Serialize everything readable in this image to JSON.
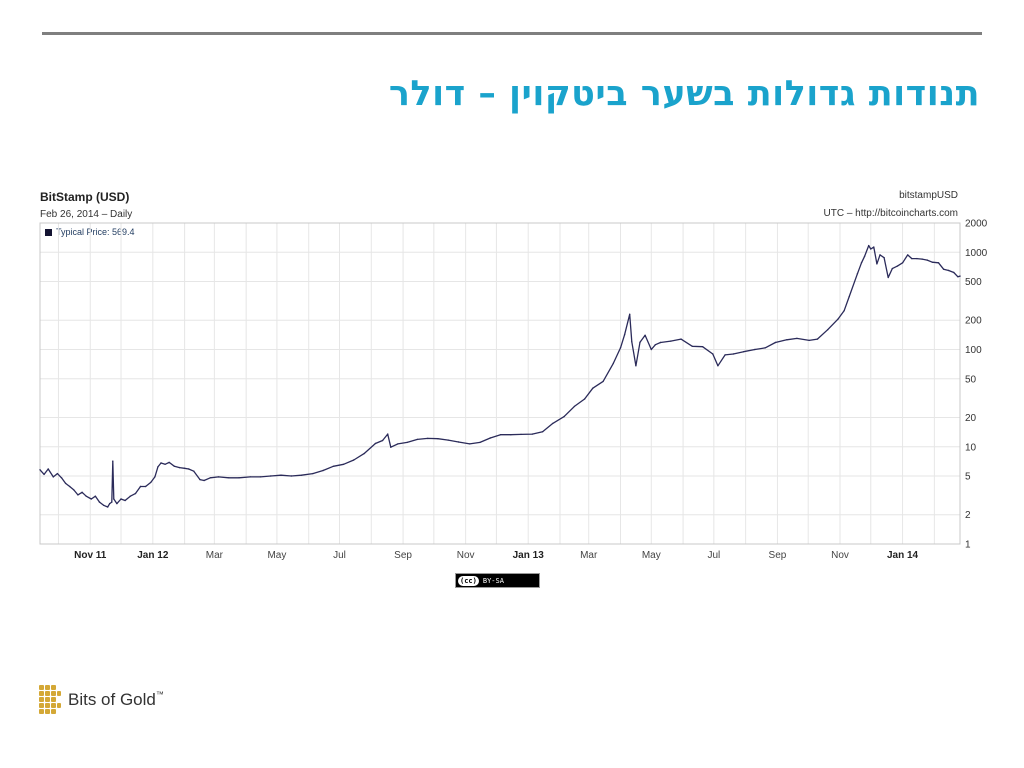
{
  "slide": {
    "title": "תנודות גדולות בשער ביטקוין – דולר"
  },
  "footer": {
    "cc_icon": "(cc)",
    "cc_license": "BY-SA",
    "logo_text": "Bits of Gold",
    "logo_tm": "™"
  },
  "colors": {
    "title": "#1aa3cc",
    "line": "#2b2b5a",
    "rule": "#7f7f7f",
    "grid": "#e6e6e6",
    "logo_gold": "#d4a836"
  },
  "chart_data": {
    "type": "line",
    "title": "BitStamp (USD)",
    "subtitle": "Feb 26, 2014 – Daily",
    "source_name": "bitstampUSD",
    "source_url": "UTC – http://bitcoincharts.com",
    "legend": [
      {
        "label": "Typical Price: 569.4"
      }
    ],
    "y_scale": "log",
    "ylim": [
      1,
      2000
    ],
    "grid": true,
    "y_ticks": [
      {
        "value": 2000,
        "label": "2000"
      },
      {
        "value": 1000,
        "label": "1000"
      },
      {
        "value": 500,
        "label": "500"
      },
      {
        "value": 200,
        "label": "200"
      },
      {
        "value": 100,
        "label": "100"
      },
      {
        "value": 50,
        "label": "50"
      },
      {
        "value": 20,
        "label": "20"
      },
      {
        "value": 10,
        "label": "10"
      },
      {
        "value": 5,
        "label": "5"
      },
      {
        "value": 2,
        "label": "2"
      },
      {
        "value": 1,
        "label": "1"
      }
    ],
    "x_range": [
      "2011-09-13",
      "2014-02-26"
    ],
    "x_ticks": [
      {
        "date": "2011-11-01",
        "label": "Nov 11",
        "bold": true
      },
      {
        "date": "2012-01-01",
        "label": "Jan 12",
        "bold": true
      },
      {
        "date": "2012-03-01",
        "label": "Mar",
        "bold": false
      },
      {
        "date": "2012-05-01",
        "label": "May",
        "bold": false
      },
      {
        "date": "2012-07-01",
        "label": "Jul",
        "bold": false
      },
      {
        "date": "2012-09-01",
        "label": "Sep",
        "bold": false
      },
      {
        "date": "2012-11-01",
        "label": "Nov",
        "bold": false
      },
      {
        "date": "2013-01-01",
        "label": "Jan 13",
        "bold": true
      },
      {
        "date": "2013-03-01",
        "label": "Mar",
        "bold": false
      },
      {
        "date": "2013-05-01",
        "label": "May",
        "bold": false
      },
      {
        "date": "2013-07-01",
        "label": "Jul",
        "bold": false
      },
      {
        "date": "2013-09-01",
        "label": "Sep",
        "bold": false
      },
      {
        "date": "2013-11-01",
        "label": "Nov",
        "bold": false
      },
      {
        "date": "2014-01-01",
        "label": "Jan 14",
        "bold": true
      }
    ],
    "series": [
      {
        "points": [
          [
            "2011-09-13",
            5.8
          ],
          [
            "2011-09-17",
            5.2
          ],
          [
            "2011-09-21",
            5.9
          ],
          [
            "2011-09-26",
            4.9
          ],
          [
            "2011-09-30",
            5.3
          ],
          [
            "2011-10-04",
            4.8
          ],
          [
            "2011-10-08",
            4.2
          ],
          [
            "2011-10-12",
            3.9
          ],
          [
            "2011-10-16",
            3.6
          ],
          [
            "2011-10-20",
            3.2
          ],
          [
            "2011-10-24",
            3.4
          ],
          [
            "2011-10-28",
            3.1
          ],
          [
            "2011-11-02",
            2.9
          ],
          [
            "2011-11-06",
            3.1
          ],
          [
            "2011-11-10",
            2.7
          ],
          [
            "2011-11-14",
            2.5
          ],
          [
            "2011-11-18",
            2.4
          ],
          [
            "2011-11-20",
            2.6
          ],
          [
            "2011-11-22",
            2.7
          ],
          [
            "2011-11-23",
            7.1
          ],
          [
            "2011-11-24",
            2.9
          ],
          [
            "2011-11-27",
            2.6
          ],
          [
            "2011-12-01",
            2.9
          ],
          [
            "2011-12-05",
            2.8
          ],
          [
            "2011-12-10",
            3.1
          ],
          [
            "2011-12-15",
            3.3
          ],
          [
            "2011-12-20",
            3.9
          ],
          [
            "2011-12-25",
            3.9
          ],
          [
            "2011-12-30",
            4.3
          ],
          [
            "2012-01-03",
            4.9
          ],
          [
            "2012-01-06",
            6.2
          ],
          [
            "2012-01-09",
            6.8
          ],
          [
            "2012-01-13",
            6.6
          ],
          [
            "2012-01-17",
            6.9
          ],
          [
            "2012-01-22",
            6.3
          ],
          [
            "2012-01-27",
            6.1
          ],
          [
            "2012-02-01",
            6.0
          ],
          [
            "2012-02-05",
            5.9
          ],
          [
            "2012-02-10",
            5.6
          ],
          [
            "2012-02-16",
            4.6
          ],
          [
            "2012-02-20",
            4.5
          ],
          [
            "2012-02-26",
            4.8
          ],
          [
            "2012-03-05",
            4.9
          ],
          [
            "2012-03-15",
            4.8
          ],
          [
            "2012-03-25",
            4.8
          ],
          [
            "2012-04-05",
            4.9
          ],
          [
            "2012-04-15",
            4.9
          ],
          [
            "2012-04-25",
            5.0
          ],
          [
            "2012-05-05",
            5.1
          ],
          [
            "2012-05-15",
            5.0
          ],
          [
            "2012-05-25",
            5.1
          ],
          [
            "2012-06-05",
            5.3
          ],
          [
            "2012-06-15",
            5.7
          ],
          [
            "2012-06-25",
            6.3
          ],
          [
            "2012-07-05",
            6.6
          ],
          [
            "2012-07-15",
            7.3
          ],
          [
            "2012-07-25",
            8.5
          ],
          [
            "2012-08-05",
            10.8
          ],
          [
            "2012-08-12",
            11.6
          ],
          [
            "2012-08-17",
            13.5
          ],
          [
            "2012-08-20",
            9.9
          ],
          [
            "2012-08-27",
            10.7
          ],
          [
            "2012-09-05",
            11.1
          ],
          [
            "2012-09-15",
            11.9
          ],
          [
            "2012-09-25",
            12.2
          ],
          [
            "2012-10-05",
            12.1
          ],
          [
            "2012-10-15",
            11.7
          ],
          [
            "2012-10-25",
            11.2
          ],
          [
            "2012-11-05",
            10.7
          ],
          [
            "2012-11-15",
            11.1
          ],
          [
            "2012-11-25",
            12.3
          ],
          [
            "2012-12-05",
            13.3
          ],
          [
            "2012-12-15",
            13.3
          ],
          [
            "2012-12-25",
            13.4
          ],
          [
            "2013-01-05",
            13.5
          ],
          [
            "2013-01-15",
            14.3
          ],
          [
            "2013-01-25",
            17.4
          ],
          [
            "2013-02-05",
            20.4
          ],
          [
            "2013-02-15",
            26
          ],
          [
            "2013-02-25",
            31
          ],
          [
            "2013-03-05",
            40
          ],
          [
            "2013-03-15",
            47
          ],
          [
            "2013-03-25",
            72
          ],
          [
            "2013-04-01",
            104
          ],
          [
            "2013-04-05",
            142
          ],
          [
            "2013-04-10",
            230
          ],
          [
            "2013-04-12",
            120
          ],
          [
            "2013-04-16",
            68
          ],
          [
            "2013-04-20",
            119
          ],
          [
            "2013-04-25",
            140
          ],
          [
            "2013-05-01",
            100
          ],
          [
            "2013-05-05",
            112
          ],
          [
            "2013-05-10",
            118
          ],
          [
            "2013-05-20",
            122
          ],
          [
            "2013-05-30",
            128
          ],
          [
            "2013-06-10",
            108
          ],
          [
            "2013-06-20",
            107
          ],
          [
            "2013-06-30",
            90
          ],
          [
            "2013-07-05",
            68
          ],
          [
            "2013-07-12",
            88
          ],
          [
            "2013-07-20",
            90
          ],
          [
            "2013-07-30",
            95
          ],
          [
            "2013-08-10",
            100
          ],
          [
            "2013-08-20",
            104
          ],
          [
            "2013-08-30",
            118
          ],
          [
            "2013-09-10",
            126
          ],
          [
            "2013-09-20",
            130
          ],
          [
            "2013-10-02",
            124
          ],
          [
            "2013-10-10",
            128
          ],
          [
            "2013-10-20",
            160
          ],
          [
            "2013-10-30",
            205
          ],
          [
            "2013-11-05",
            250
          ],
          [
            "2013-11-10",
            350
          ],
          [
            "2013-11-18",
            600
          ],
          [
            "2013-11-22",
            780
          ],
          [
            "2013-11-25",
            910
          ],
          [
            "2013-11-29",
            1170
          ],
          [
            "2013-12-01",
            1080
          ],
          [
            "2013-12-04",
            1130
          ],
          [
            "2013-12-07",
            760
          ],
          [
            "2013-12-10",
            940
          ],
          [
            "2013-12-14",
            880
          ],
          [
            "2013-12-18",
            550
          ],
          [
            "2013-12-22",
            680
          ],
          [
            "2013-12-27",
            720
          ],
          [
            "2014-01-01",
            780
          ],
          [
            "2014-01-06",
            940
          ],
          [
            "2014-01-10",
            860
          ],
          [
            "2014-01-15",
            860
          ],
          [
            "2014-01-20",
            850
          ],
          [
            "2014-01-25",
            830
          ],
          [
            "2014-01-30",
            790
          ],
          [
            "2014-02-05",
            780
          ],
          [
            "2014-02-10",
            670
          ],
          [
            "2014-02-15",
            650
          ],
          [
            "2014-02-20",
            620
          ],
          [
            "2014-02-24",
            560
          ],
          [
            "2014-02-26",
            569.4
          ]
        ]
      }
    ]
  }
}
